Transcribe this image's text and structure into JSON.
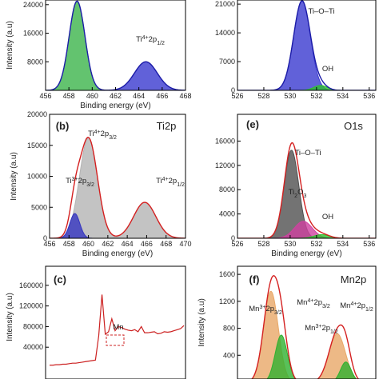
{
  "chart_data": [
    {
      "type": "area",
      "x_label": "Binding energy (eV)",
      "y_label": "Intensity (a.u)",
      "xlim": [
        456,
        468
      ],
      "ylim": [
        0,
        25300
      ],
      "xticks": [
        456,
        458,
        460,
        462,
        464,
        466,
        468
      ],
      "yticks": [
        8000,
        16000,
        24000
      ],
      "envelope_color": "#1c1ca8",
      "peaks": [
        {
          "color": "#3cb44b",
          "center": 458.7,
          "height": 25000,
          "fwhm": 1.6
        },
        {
          "color": "#3a3ad0",
          "center": 464.6,
          "height": 8000,
          "fwhm": 2.3
        }
      ],
      "annotations": [
        [
          "Ti",
          {
            "sup": "4+"
          },
          "2p",
          {
            "sub": "1/2"
          }
        ]
      ]
    },
    {
      "type": "area",
      "xlim": [
        526,
        536.5
      ],
      "ylim": [
        0,
        22000
      ],
      "xticks": [
        526,
        528,
        530,
        532,
        534,
        536
      ],
      "yticks": [
        0,
        7000,
        14000,
        21000
      ],
      "envelope_color": "#1c1ca8",
      "peaks": [
        {
          "color": "#3a3ad0",
          "center": 530.9,
          "height": 21800,
          "fwhm": 1.5
        },
        {
          "color": "#30c030",
          "center": 532.3,
          "height": 1200,
          "fwhm": 1.2
        }
      ],
      "annotations": [
        [
          "Ti–O–Ti"
        ],
        [
          "OH"
        ]
      ]
    },
    {
      "type": "area",
      "panel_label": "(b)",
      "title": "Ti2p",
      "x_label": "Binding energy (eV)",
      "y_label": "Intensity (a.u)",
      "xlim": [
        456,
        470
      ],
      "ylim": [
        0,
        20000
      ],
      "xticks": [
        456,
        458,
        460,
        462,
        464,
        466,
        468,
        470
      ],
      "yticks": [
        0,
        5000,
        10000,
        15000,
        20000
      ],
      "envelope_color": "#d42020",
      "peaks": [
        {
          "color": "#b4b4b4",
          "center": 460.0,
          "height": 16200,
          "fwhm": 2.2
        },
        {
          "color": "#3535c0",
          "center": 458.6,
          "height": 4000,
          "fwhm": 1.2
        },
        {
          "color": "#b4b4b4",
          "center": 465.8,
          "height": 5800,
          "fwhm": 2.7
        }
      ],
      "annotations": [
        [
          "Ti",
          {
            "sup": "4+"
          },
          "2p",
          {
            "sub": "3/2"
          }
        ],
        [
          "Ti",
          {
            "sup": "3+"
          },
          "2p",
          {
            "sub": "3/2"
          }
        ],
        [
          "Ti",
          {
            "sup": "4+"
          },
          "2p",
          {
            "sub": "1/2"
          }
        ]
      ]
    },
    {
      "type": "area",
      "panel_label": "(e)",
      "title": "O1s",
      "x_label": "Binding energy (eV)",
      "xlim": [
        526,
        536.5
      ],
      "ylim": [
        0,
        20400
      ],
      "xticks": [
        526,
        528,
        530,
        532,
        534,
        536
      ],
      "yticks": [
        0,
        4000,
        8000,
        12000,
        16000
      ],
      "envelope_color": "#d42020",
      "peaks": [
        {
          "color": "#505050",
          "center": 530.1,
          "height": 14500,
          "fwhm": 1.3
        },
        {
          "color": "#d040a0",
          "center": 531.0,
          "height": 2800,
          "fwhm": 1.6
        },
        {
          "color": "#30c030",
          "center": 532.4,
          "height": 600,
          "fwhm": 1.4
        }
      ],
      "annotations": [
        [
          "Ti–O–Ti"
        ],
        [
          "Ti",
          {
            "sub": "2"
          },
          "O",
          {
            "sub": "3"
          }
        ],
        [
          "OH"
        ]
      ]
    },
    {
      "type": "line",
      "panel_label": "(c)",
      "y_label": "Intensity (a.u)",
      "ylim": [
        0,
        197000
      ],
      "yticks": [
        40000,
        80000,
        120000,
        160000
      ],
      "series": [
        {
          "color": "#cc2020",
          "values": [
            5000,
            5000,
            6000,
            6000,
            7000,
            7000,
            8000,
            9000,
            9000,
            10000,
            11000,
            12000,
            13000,
            14000,
            15000,
            62000,
            142000,
            65000,
            70000,
            95000,
            72000,
            80000,
            78000,
            75000,
            73000,
            72000,
            74000,
            70000,
            80000,
            68000,
            68000,
            69000,
            70000,
            66000,
            67000,
            70000,
            69000,
            70000,
            72000,
            74000,
            76000,
            82000
          ]
        }
      ],
      "annotations": [
        [
          "Mn"
        ]
      ]
    },
    {
      "type": "area",
      "panel_label": "(f)",
      "title": "Mn2p",
      "y_label": "Intensity (a.u)",
      "xlim": [
        636,
        660
      ],
      "ylim": [
        0,
        1720
      ],
      "yticks": [
        400,
        800,
        1200,
        1600
      ],
      "envelope_color": "#d42020",
      "peaks": [
        {
          "color": "#e8a868",
          "center": 641.8,
          "height": 1350,
          "fwhm": 3.0
        },
        {
          "color": "#30b030",
          "center": 643.6,
          "height": 700,
          "fwhm": 2.5
        },
        {
          "color": "#e8a868",
          "center": 653.3,
          "height": 720,
          "fwhm": 3.4
        },
        {
          "color": "#30b030",
          "center": 654.8,
          "height": 300,
          "fwhm": 2.2
        }
      ],
      "annotations": [
        [
          "Mn",
          {
            "sup": "3+"
          },
          "2p",
          {
            "sub": "3/2"
          }
        ],
        [
          "Mn",
          {
            "sup": "4+"
          },
          "2p",
          {
            "sub": "3/2"
          }
        ],
        [
          "Mn",
          {
            "sup": "3+"
          },
          "2p",
          {
            "sub": "1/2"
          }
        ],
        [
          "Mn",
          {
            "sup": "4+"
          },
          "2p",
          {
            "sub": "1/2"
          }
        ]
      ]
    }
  ]
}
